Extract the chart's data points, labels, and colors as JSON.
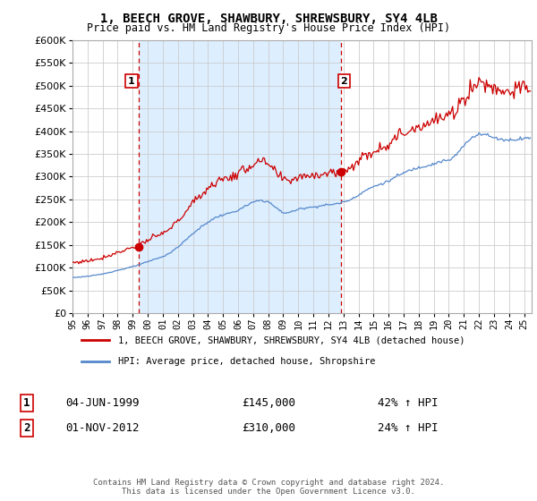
{
  "title": "1, BEECH GROVE, SHAWBURY, SHREWSBURY, SY4 4LB",
  "subtitle": "Price paid vs. HM Land Registry's House Price Index (HPI)",
  "legend_line1": "1, BEECH GROVE, SHAWBURY, SHREWSBURY, SY4 4LB (detached house)",
  "legend_line2": "HPI: Average price, detached house, Shropshire",
  "sale1_label": "1",
  "sale1_date": "04-JUN-1999",
  "sale1_price": "£145,000",
  "sale1_hpi": "42% ↑ HPI",
  "sale2_label": "2",
  "sale2_date": "01-NOV-2012",
  "sale2_price": "£310,000",
  "sale2_hpi": "24% ↑ HPI",
  "footer": "Contains HM Land Registry data © Crown copyright and database right 2024.\nThis data is licensed under the Open Government Licence v3.0.",
  "hpi_color": "#5588cc",
  "sale_color": "#cc0000",
  "vline_color": "#cc0000",
  "shade_color": "#ddeeff",
  "background_color": "#ffffff",
  "plot_bg_color": "#ffffff",
  "ylim": [
    0,
    600000
  ],
  "yticks": [
    0,
    50000,
    100000,
    150000,
    200000,
    250000,
    300000,
    350000,
    400000,
    450000,
    500000,
    550000,
    600000
  ],
  "xlim_start": 1995.0,
  "xlim_end": 2025.5,
  "sale1_x": 1999.42,
  "sale1_y": 145000,
  "sale2_x": 2012.83,
  "sale2_y": 310000
}
